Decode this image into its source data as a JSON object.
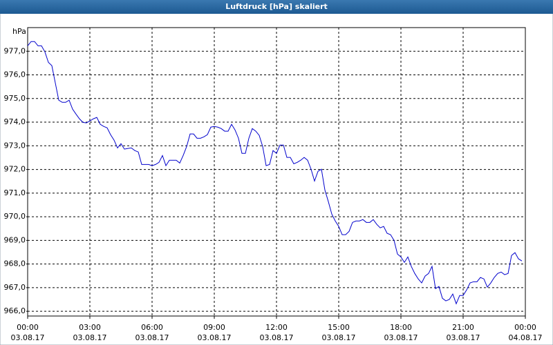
{
  "chart_data": {
    "type": "line",
    "title": "Luftdruck [hPa] skaliert",
    "y_label": "hPa",
    "color": "#0000cc",
    "grid": true,
    "xlim": [
      0,
      1440
    ],
    "ylim": [
      965.8,
      978.0
    ],
    "xticks": [
      {
        "value": 0,
        "label": [
          "00:00",
          "03.08.17"
        ]
      },
      {
        "value": 180,
        "label": [
          "03:00",
          "03.08.17"
        ]
      },
      {
        "value": 360,
        "label": [
          "06:00",
          "03.08.17"
        ]
      },
      {
        "value": 540,
        "label": [
          "09:00",
          "03.08.17"
        ]
      },
      {
        "value": 720,
        "label": [
          "12:00",
          "03.08.17"
        ]
      },
      {
        "value": 900,
        "label": [
          "15:00",
          "03.08.17"
        ]
      },
      {
        "value": 1080,
        "label": [
          "18:00",
          "03.08.17"
        ]
      },
      {
        "value": 1260,
        "label": [
          "21:00",
          "03.08.17"
        ]
      },
      {
        "value": 1440,
        "label": [
          "00:00",
          "04.08.17"
        ]
      }
    ],
    "yticks": [
      {
        "value": 966,
        "label": "966,0"
      },
      {
        "value": 967,
        "label": "967,0"
      },
      {
        "value": 968,
        "label": "968,0"
      },
      {
        "value": 969,
        "label": "969,0"
      },
      {
        "value": 970,
        "label": "970,0"
      },
      {
        "value": 971,
        "label": "971,0"
      },
      {
        "value": 972,
        "label": "972,0"
      },
      {
        "value": 973,
        "label": "973,0"
      },
      {
        "value": 974,
        "label": "974,0"
      },
      {
        "value": 975,
        "label": "975,0"
      },
      {
        "value": 976,
        "label": "976,0"
      },
      {
        "value": 977,
        "label": "977,0"
      }
    ],
    "x": [
      0,
      10,
      20,
      30,
      40,
      50,
      60,
      70,
      80,
      90,
      100,
      110,
      120,
      130,
      140,
      150,
      160,
      170,
      180,
      190,
      200,
      210,
      220,
      230,
      240,
      250,
      260,
      270,
      280,
      290,
      300,
      310,
      320,
      330,
      340,
      350,
      360,
      370,
      380,
      390,
      400,
      410,
      420,
      430,
      440,
      450,
      460,
      470,
      480,
      490,
      500,
      510,
      520,
      530,
      540,
      550,
      560,
      570,
      580,
      590,
      600,
      610,
      620,
      630,
      640,
      650,
      660,
      670,
      680,
      690,
      700,
      710,
      720,
      730,
      740,
      750,
      760,
      770,
      780,
      790,
      800,
      810,
      820,
      830,
      840,
      850,
      860,
      870,
      880,
      890,
      900,
      910,
      920,
      930,
      940,
      950,
      960,
      970,
      980,
      990,
      1000,
      1010,
      1020,
      1030,
      1040,
      1050,
      1060,
      1070,
      1080,
      1090,
      1100,
      1110,
      1120,
      1130,
      1140,
      1150,
      1160,
      1170,
      1180,
      1190,
      1200,
      1210,
      1220,
      1230,
      1240,
      1250,
      1260,
      1270,
      1280,
      1290,
      1300,
      1310,
      1320,
      1330,
      1340,
      1350,
      1360,
      1370,
      1380,
      1390,
      1400,
      1410,
      1420,
      1430
    ],
    "values": [
      977.23,
      977.41,
      977.41,
      977.23,
      977.23,
      976.97,
      976.53,
      976.39,
      975.66,
      974.93,
      974.84,
      974.84,
      974.93,
      974.55,
      974.34,
      974.14,
      973.99,
      973.97,
      974.05,
      974.14,
      974.2,
      973.91,
      973.82,
      973.76,
      973.47,
      973.24,
      972.91,
      973.09,
      972.86,
      972.89,
      972.91,
      972.8,
      972.74,
      972.21,
      972.21,
      972.21,
      972.16,
      972.21,
      972.3,
      972.59,
      972.16,
      972.39,
      972.39,
      972.39,
      972.27,
      972.59,
      972.97,
      973.5,
      973.5,
      973.32,
      973.32,
      973.38,
      973.47,
      973.79,
      973.82,
      973.79,
      973.73,
      973.62,
      973.62,
      973.91,
      973.67,
      973.32,
      972.68,
      972.68,
      973.32,
      973.73,
      973.62,
      973.44,
      972.97,
      972.16,
      972.21,
      972.8,
      972.68,
      973.03,
      973.03,
      972.51,
      972.51,
      972.24,
      972.3,
      972.39,
      972.51,
      972.39,
      972.01,
      971.51,
      971.92,
      972.01,
      971.13,
      970.64,
      970.11,
      969.82,
      969.59,
      969.24,
      969.24,
      969.38,
      969.76,
      969.82,
      969.82,
      969.88,
      969.76,
      969.76,
      969.88,
      969.68,
      969.53,
      969.59,
      969.3,
      969.24,
      969.0,
      968.42,
      968.3,
      968.07,
      968.3,
      967.9,
      967.6,
      967.37,
      967.2,
      967.49,
      967.6,
      967.9,
      966.96,
      967.05,
      966.55,
      966.44,
      966.5,
      966.73,
      966.32,
      966.67,
      966.67,
      966.9,
      967.2,
      967.25,
      967.25,
      967.43,
      967.37,
      967.02,
      967.2,
      967.43,
      967.6,
      967.66,
      967.55,
      967.6,
      968.36,
      968.48,
      968.22,
      968.13
    ]
  }
}
